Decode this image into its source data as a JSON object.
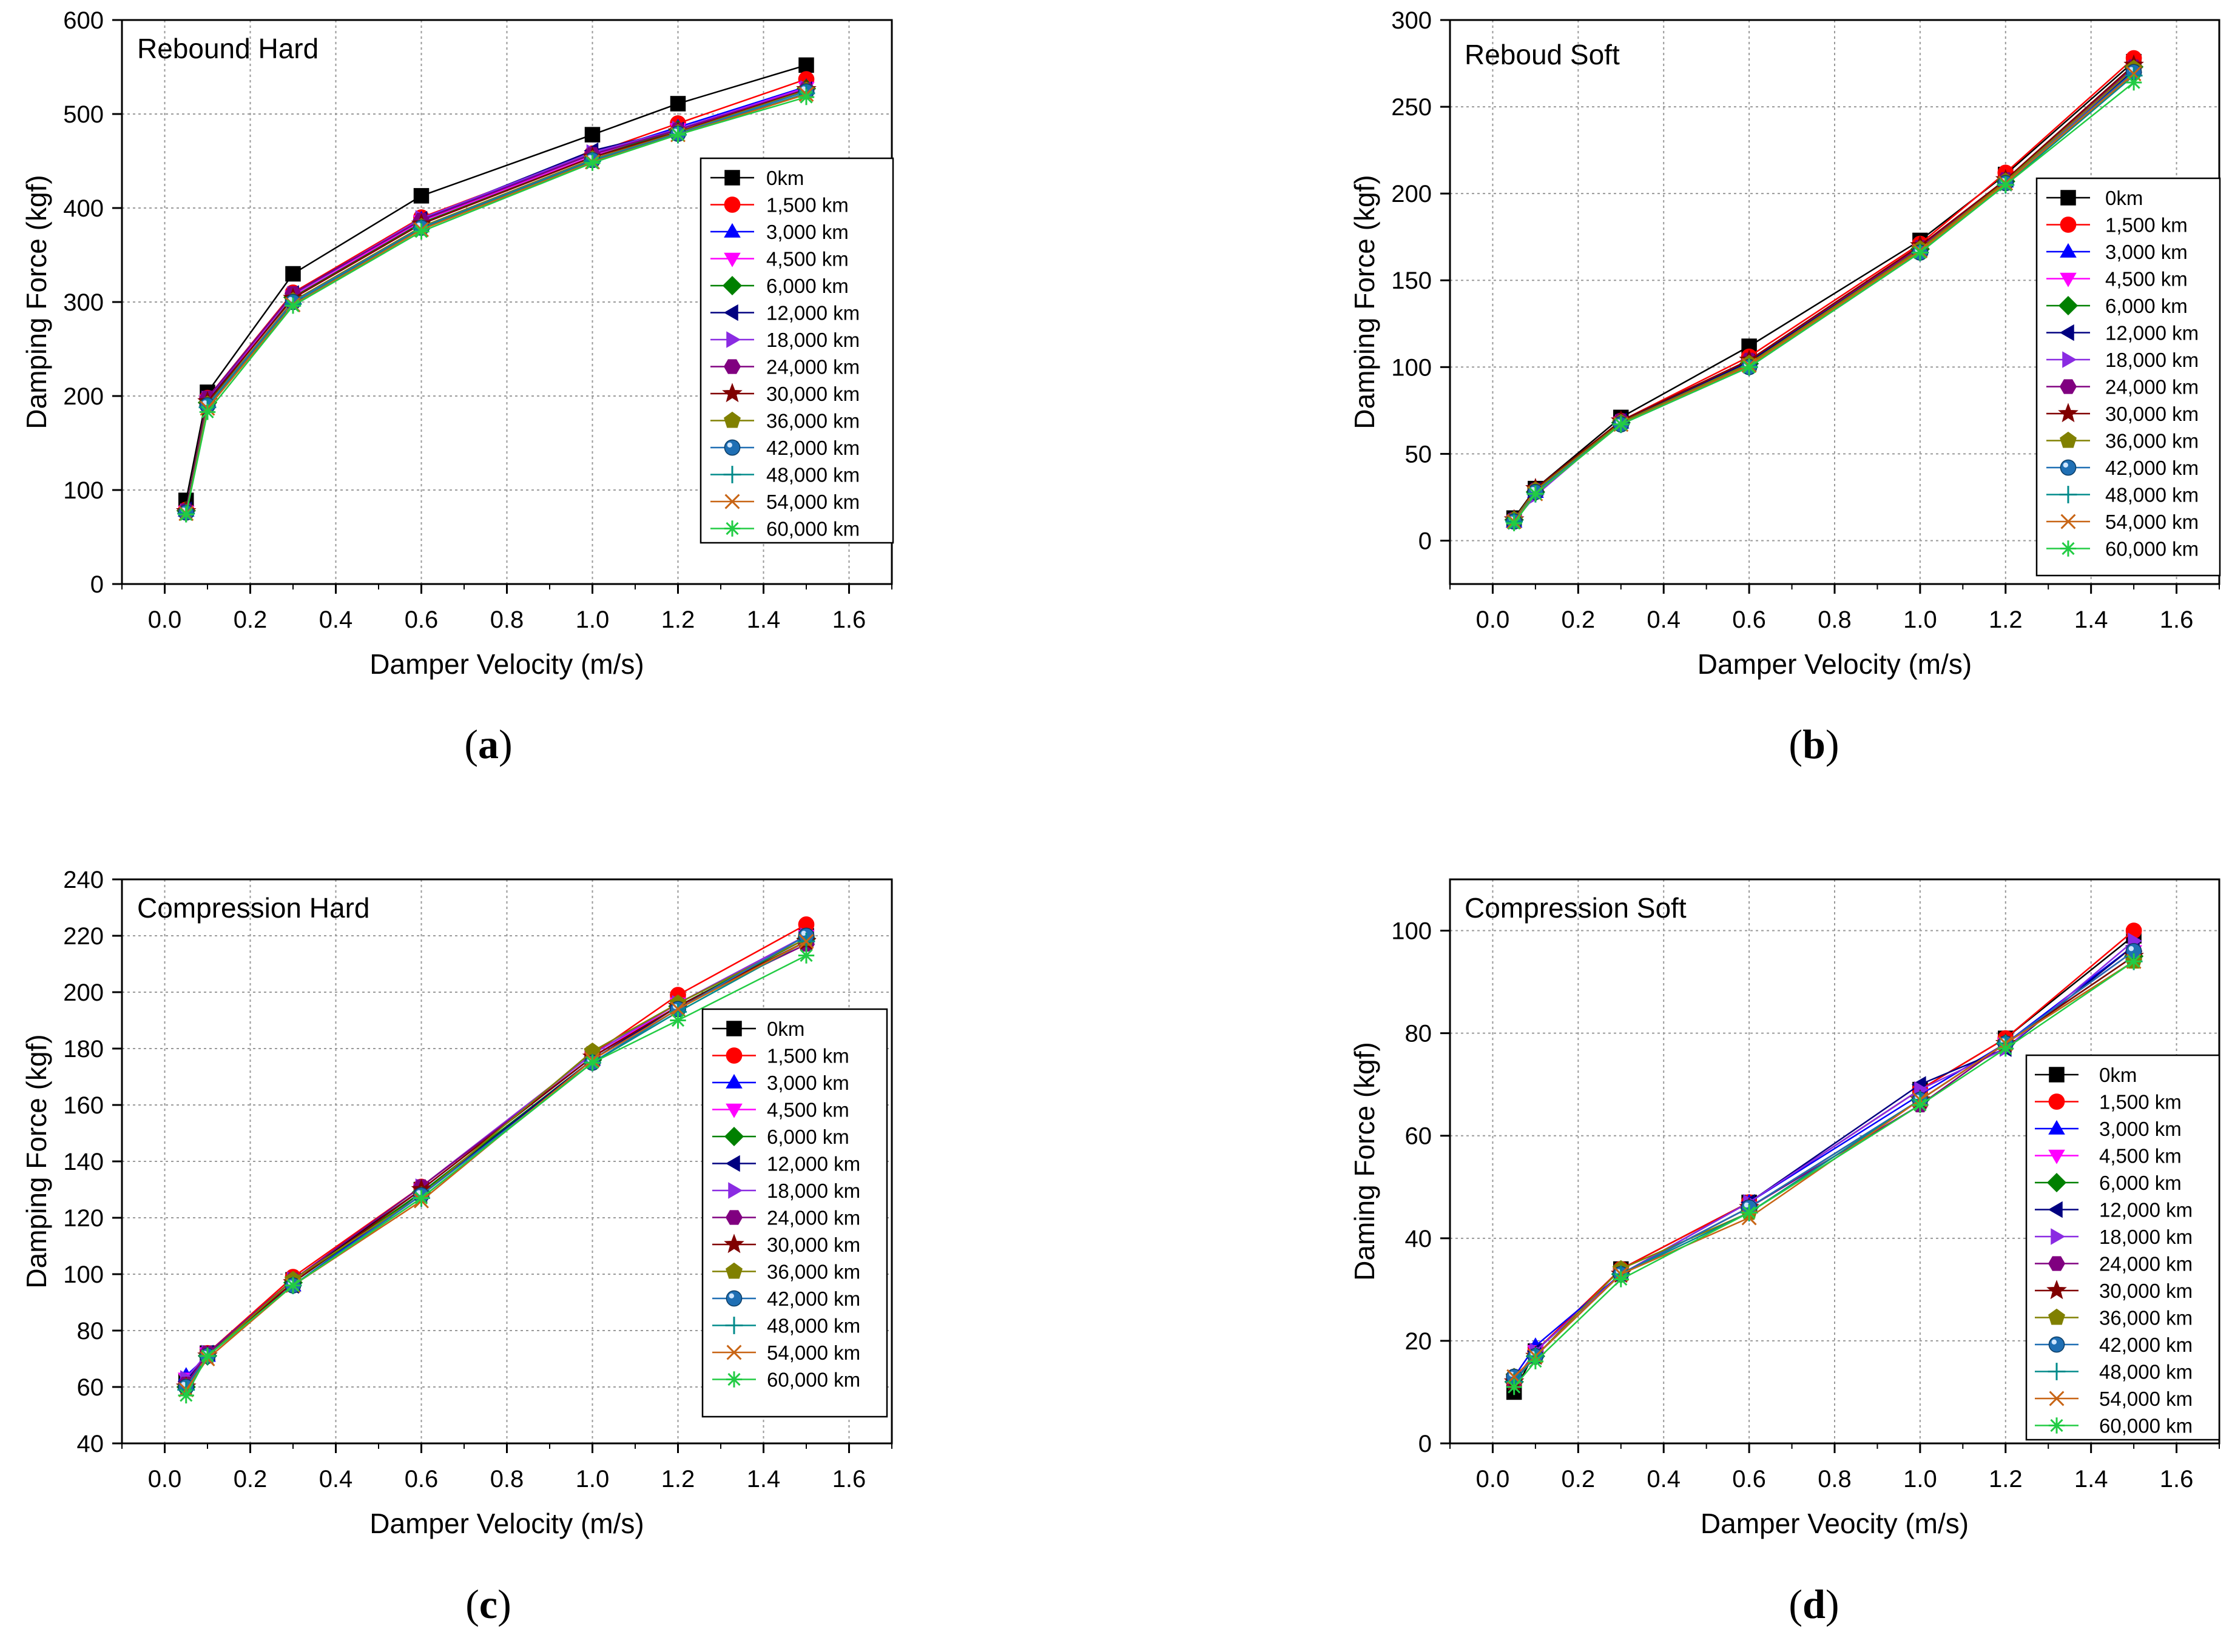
{
  "colors": [
    "#000000",
    "#ff0000",
    "#0000ff",
    "#ff00ff",
    "#008000",
    "#000080",
    "#8a2be2",
    "#800080",
    "#800000",
    "#808000",
    "#1f6fb4",
    "#008b8b",
    "#c86414",
    "#22cc44"
  ],
  "markers": [
    "square",
    "circle",
    "triangle-up",
    "triangle-down",
    "diamond",
    "triangle-left",
    "triangle-right",
    "hexagon",
    "star",
    "pentagon",
    "sphere",
    "plus",
    "cross",
    "asterisk"
  ],
  "chart_data": [
    {
      "type": "line",
      "panel_label": "a",
      "title": "Rebound Hard",
      "xlabel": "Damper Velocity (m/s)",
      "ylabel": "Damping Force (kgf)",
      "xlim": [
        -0.1,
        1.7
      ],
      "ylim": [
        0,
        600
      ],
      "xticks": [
        "0.0",
        "0.2",
        "0.4",
        "0.6",
        "0.8",
        "1.0",
        "1.2",
        "1.4",
        "1.6"
      ],
      "yticks": [
        "0",
        "100",
        "200",
        "300",
        "400",
        "500",
        "600"
      ],
      "legend_position": "right",
      "x": [
        0.05,
        0.1,
        0.3,
        0.6,
        1.0,
        1.2,
        1.5
      ],
      "series": [
        {
          "name": "0km",
          "values": [
            89,
            204,
            330,
            413,
            478,
            511,
            552
          ]
        },
        {
          "name": "1,500 km",
          "values": [
            79,
            198,
            310,
            390,
            458,
            490,
            537
          ]
        },
        {
          "name": "3,000 km",
          "values": [
            78,
            196,
            308,
            388,
            457,
            486,
            529
          ]
        },
        {
          "name": "4,500 km",
          "values": [
            77,
            195,
            306,
            386,
            455,
            484,
            528
          ]
        },
        {
          "name": "6,000 km",
          "values": [
            78,
            193,
            305,
            384,
            454,
            483,
            527
          ]
        },
        {
          "name": "12,000 km",
          "values": [
            79,
            196,
            309,
            388,
            461,
            483,
            526
          ]
        },
        {
          "name": "18,000 km",
          "values": [
            77,
            197,
            308,
            389,
            459,
            484,
            527
          ]
        },
        {
          "name": "24,000 km",
          "values": [
            78,
            198,
            309,
            387,
            457,
            483,
            526
          ]
        },
        {
          "name": "30,000 km",
          "values": [
            77,
            194,
            304,
            383,
            454,
            481,
            526
          ]
        },
        {
          "name": "36,000 km",
          "values": [
            76,
            191,
            301,
            380,
            452,
            480,
            525
          ]
        },
        {
          "name": "42,000 km",
          "values": [
            76,
            190,
            300,
            379,
            451,
            479,
            524
          ]
        },
        {
          "name": "48,000 km",
          "values": [
            75,
            188,
            298,
            378,
            450,
            478,
            522
          ]
        },
        {
          "name": "54,000 km",
          "values": [
            75,
            187,
            297,
            377,
            449,
            478,
            521
          ]
        },
        {
          "name": "60,000 km",
          "values": [
            74,
            183,
            296,
            375,
            448,
            478,
            518
          ]
        }
      ]
    },
    {
      "type": "line",
      "panel_label": "b",
      "title": "Reboud Soft",
      "xlabel": "Damper Velocity (m/s)",
      "ylabel": "Damping Force (kgf)",
      "xlim": [
        -0.1,
        1.7
      ],
      "ylim": [
        -25,
        300
      ],
      "xticks": [
        "0.0",
        "0.2",
        "0.4",
        "0.6",
        "0.8",
        "1.0",
        "1.2",
        "1.4",
        "1.6"
      ],
      "yticks": [
        "0",
        "50",
        "100",
        "150",
        "200",
        "250",
        "300"
      ],
      "legend_position": "right",
      "x": [
        0.05,
        0.1,
        0.3,
        0.6,
        1.0,
        1.2,
        1.5
      ],
      "series": [
        {
          "name": "0km",
          "values": [
            13,
            30,
            71,
            112,
            173,
            211,
            276
          ]
        },
        {
          "name": "1,500 km",
          "values": [
            12,
            29,
            69,
            106,
            171,
            212,
            278
          ]
        },
        {
          "name": "3,000 km",
          "values": [
            11,
            28,
            68,
            103,
            168,
            207,
            273
          ]
        },
        {
          "name": "4,500 km",
          "values": [
            11,
            27,
            68,
            102,
            167,
            206,
            272
          ]
        },
        {
          "name": "6,000 km",
          "values": [
            12,
            28,
            68,
            102,
            168,
            207,
            273
          ]
        },
        {
          "name": "12,000 km",
          "values": [
            12,
            29,
            69,
            103,
            168,
            206,
            271
          ]
        },
        {
          "name": "18,000 km",
          "values": [
            11,
            26,
            68,
            101,
            167,
            206,
            272
          ]
        },
        {
          "name": "24,000 km",
          "values": [
            12,
            29,
            69,
            104,
            169,
            208,
            273
          ]
        },
        {
          "name": "30,000 km",
          "values": [
            12,
            30,
            69,
            104,
            170,
            208,
            274
          ]
        },
        {
          "name": "36,000 km",
          "values": [
            12,
            29,
            68,
            102,
            168,
            207,
            272
          ]
        },
        {
          "name": "42,000 km",
          "values": [
            11,
            28,
            67,
            100,
            166,
            206,
            270
          ]
        },
        {
          "name": "48,000 km",
          "values": [
            11,
            27,
            67,
            100,
            166,
            205,
            268
          ]
        },
        {
          "name": "54,000 km",
          "values": [
            11,
            27,
            67,
            101,
            167,
            206,
            269
          ]
        },
        {
          "name": "60,000 km",
          "values": [
            10,
            27,
            67,
            100,
            166,
            205,
            264
          ]
        }
      ]
    },
    {
      "type": "line",
      "panel_label": "c",
      "title": "Compression Hard",
      "xlabel": "Damper Velocity (m/s)",
      "ylabel": "Damping Force (kgf)",
      "xlim": [
        -0.1,
        1.7
      ],
      "ylim": [
        40,
        240
      ],
      "xticks": [
        "0.0",
        "0.2",
        "0.4",
        "0.6",
        "0.8",
        "1.0",
        "1.2",
        "1.4",
        "1.6"
      ],
      "yticks": [
        "40",
        "60",
        "80",
        "100",
        "120",
        "140",
        "160",
        "180",
        "200",
        "220",
        "240"
      ],
      "legend_position": "right",
      "x": [
        0.05,
        0.1,
        0.3,
        0.6,
        1.0,
        1.2,
        1.5
      ],
      "series": [
        {
          "name": "0km",
          "values": [
            62,
            72,
            98,
            130,
            177,
            196,
            220
          ]
        },
        {
          "name": "1,500 km",
          "values": [
            61,
            72,
            99,
            131,
            178,
            199,
            224
          ]
        },
        {
          "name": "3,000 km",
          "values": [
            64,
            71,
            96,
            129,
            176,
            195,
            219
          ]
        },
        {
          "name": "4,500 km",
          "values": [
            63,
            72,
            97,
            130,
            177,
            196,
            220
          ]
        },
        {
          "name": "6,000 km",
          "values": [
            60,
            71,
            97,
            129,
            176,
            195,
            219
          ]
        },
        {
          "name": "12,000 km",
          "values": [
            62,
            72,
            96,
            128,
            176,
            195,
            218
          ]
        },
        {
          "name": "18,000 km",
          "values": [
            63,
            72,
            98,
            131,
            178,
            196,
            220
          ]
        },
        {
          "name": "24,000 km",
          "values": [
            61,
            72,
            98,
            131,
            177,
            195,
            217
          ]
        },
        {
          "name": "30,000 km",
          "values": [
            60,
            71,
            97,
            130,
            177,
            195,
            218
          ]
        },
        {
          "name": "36,000 km",
          "values": [
            60,
            71,
            98,
            128,
            179,
            196,
            219
          ]
        },
        {
          "name": "42,000 km",
          "values": [
            60,
            71,
            96,
            128,
            175,
            194,
            220
          ]
        },
        {
          "name": "48,000 km",
          "values": [
            59,
            71,
            96,
            127,
            175,
            193,
            218
          ]
        },
        {
          "name": "54,000 km",
          "values": [
            59,
            70,
            96,
            126,
            176,
            194,
            218
          ]
        },
        {
          "name": "60,000 km",
          "values": [
            57,
            71,
            96,
            127,
            175,
            190,
            213
          ]
        }
      ]
    },
    {
      "type": "line",
      "panel_label": "d",
      "title": "Compression Soft",
      "xlabel": "Damper Veocity (m/s)",
      "ylabel": "Daming Force (kgf)",
      "xlim": [
        -0.1,
        1.7
      ],
      "ylim": [
        0,
        110
      ],
      "xticks": [
        "0.0",
        "0.2",
        "0.4",
        "0.6",
        "0.8",
        "1.0",
        "1.2",
        "1.4",
        "1.6"
      ],
      "yticks": [
        "0",
        "20",
        "40",
        "60",
        "80",
        "100"
      ],
      "legend_position": "right",
      "x": [
        0.05,
        0.1,
        0.3,
        0.6,
        1.0,
        1.2,
        1.5
      ],
      "series": [
        {
          "name": "0km",
          "values": [
            10,
            18,
            34,
            47,
            69,
            79,
            99
          ]
        },
        {
          "name": "1,500 km",
          "values": [
            12,
            18,
            34,
            47,
            69,
            79,
            100
          ]
        },
        {
          "name": "3,000 km",
          "values": [
            13,
            19,
            33,
            47,
            68,
            78,
            97
          ]
        },
        {
          "name": "4,500 km",
          "values": [
            12,
            18,
            33,
            46,
            67,
            78,
            96
          ]
        },
        {
          "name": "6,000 km",
          "values": [
            12,
            17,
            33,
            46,
            67,
            78,
            95
          ]
        },
        {
          "name": "12,000 km",
          "values": [
            12,
            18,
            33,
            47,
            70,
            77,
            97
          ]
        },
        {
          "name": "18,000 km",
          "values": [
            12,
            18,
            33,
            47,
            69,
            77,
            98
          ]
        },
        {
          "name": "24,000 km",
          "values": [
            12,
            17,
            33,
            46,
            66,
            78,
            96
          ]
        },
        {
          "name": "30,000 km",
          "values": [
            12,
            17,
            33,
            46,
            67,
            78,
            95
          ]
        },
        {
          "name": "36,000 km",
          "values": [
            13,
            17,
            34,
            45,
            67,
            78,
            94
          ]
        },
        {
          "name": "42,000 km",
          "values": [
            13,
            17,
            33,
            46,
            67,
            78,
            96
          ]
        },
        {
          "name": "48,000 km",
          "values": [
            12,
            17,
            33,
            45,
            67,
            78,
            94
          ]
        },
        {
          "name": "54,000 km",
          "values": [
            13,
            17,
            33,
            44,
            67,
            78,
            94
          ]
        },
        {
          "name": "60,000 km",
          "values": [
            11,
            16,
            32,
            45,
            66,
            77,
            94
          ]
        }
      ]
    }
  ]
}
